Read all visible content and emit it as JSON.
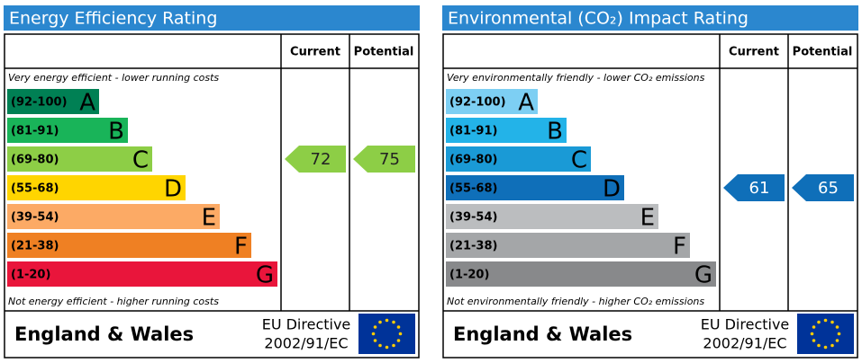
{
  "panels": [
    {
      "title": "Energy Efficiency Rating",
      "current_header": "Current",
      "potential_header": "Potential",
      "top_note": "Very energy efficient - lower running costs",
      "bottom_note": "Not energy efficient - higher running costs",
      "bands": [
        {
          "range": "(92-100)",
          "letter": "A",
          "color": "#008054"
        },
        {
          "range": "(81-91)",
          "letter": "B",
          "color": "#19b459"
        },
        {
          "range": "(69-80)",
          "letter": "C",
          "color": "#8dce46"
        },
        {
          "range": "(55-68)",
          "letter": "D",
          "color": "#ffd500"
        },
        {
          "range": "(39-54)",
          "letter": "E",
          "color": "#fcaa65"
        },
        {
          "range": "(21-38)",
          "letter": "F",
          "color": "#ef8023"
        },
        {
          "range": "(1-20)",
          "letter": "G",
          "color": "#e9153b"
        }
      ],
      "current": 72,
      "potential": 75,
      "region": "England & Wales",
      "directive": "EU Directive",
      "directive_number": "2002/91/EC"
    },
    {
      "title": "Environmental (CO₂) Impact Rating",
      "current_header": "Current",
      "potential_header": "Potential",
      "top_note": "Very environmentally friendly - lower CO₂ emissions",
      "bottom_note": "Not environmentally friendly - higher CO₂ emissions",
      "bands": [
        {
          "range": "(92-100)",
          "letter": "A",
          "color": "#7dcff3"
        },
        {
          "range": "(81-91)",
          "letter": "B",
          "color": "#23b3e8"
        },
        {
          "range": "(69-80)",
          "letter": "C",
          "color": "#1a9ad6"
        },
        {
          "range": "(55-68)",
          "letter": "D",
          "color": "#0f6fb9"
        },
        {
          "range": "(39-54)",
          "letter": "E",
          "color": "#bbbdbf"
        },
        {
          "range": "(21-38)",
          "letter": "F",
          "color": "#a4a6a8"
        },
        {
          "range": "(1-20)",
          "letter": "G",
          "color": "#88898b"
        }
      ],
      "current": 61,
      "potential": 65,
      "region": "England & Wales",
      "directive": "EU Directive",
      "directive_number": "2002/91/EC"
    }
  ]
}
